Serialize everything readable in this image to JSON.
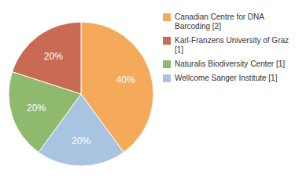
{
  "chart_data": {
    "type": "pie",
    "categories": [
      "Canadian Centre for DNA Barcoding [2]",
      "Wellcome Sanger Institute [1]",
      "Naturalis Biodiversity Center [1]",
      "Karl-Franzens University of Graz [1]"
    ],
    "values": [
      40,
      20,
      20,
      20
    ],
    "value_labels": [
      "40%",
      "20%",
      "20%",
      "20%"
    ],
    "colors": [
      "#F5A95A",
      "#A8C4E0",
      "#8FBA6E",
      "#C96A55"
    ],
    "data_labels": true,
    "legend": "right"
  }
}
